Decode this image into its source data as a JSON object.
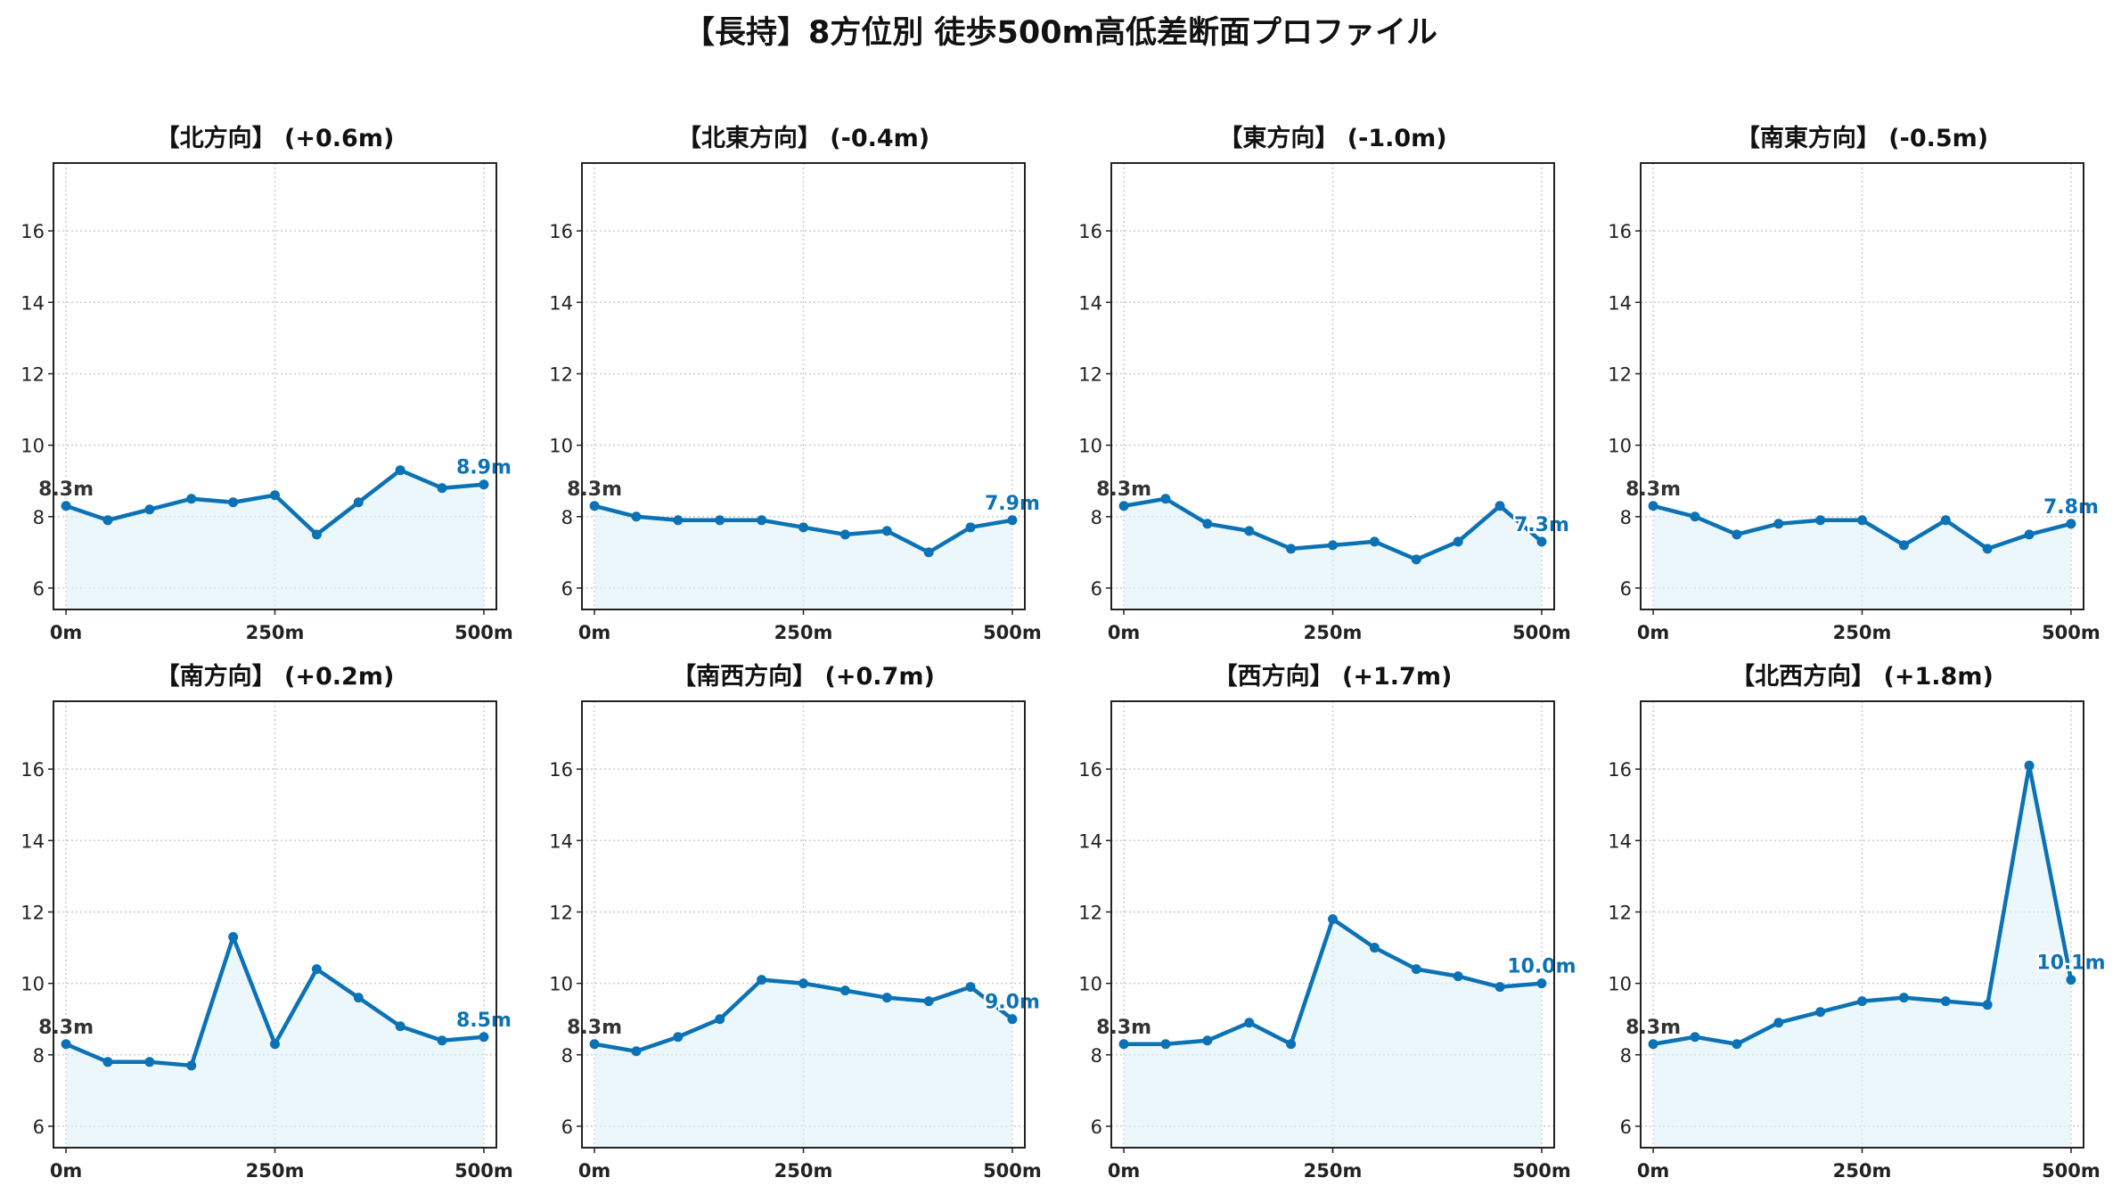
{
  "page": {
    "title": "【長持】8方位別 徒歩500m高低差断面プロファイル"
  },
  "style": {
    "line_color": "#0b72b5",
    "fill_color": "#dff1fa",
    "start_label_color": "#333333",
    "grid_color": "#cccccc"
  },
  "chart_data": [
    {
      "type": "line",
      "title": "【北方向】 (+0.6m)",
      "x": [
        0,
        50,
        100,
        150,
        200,
        250,
        300,
        350,
        400,
        450,
        500
      ],
      "values": [
        8.3,
        7.9,
        8.2,
        8.5,
        8.4,
        8.6,
        7.5,
        8.4,
        9.3,
        8.8,
        8.9
      ],
      "start_label": "8.3m",
      "end_label": "8.9m",
      "xticks": [
        "0m",
        "250m",
        "500m"
      ],
      "yticks": [
        "6",
        "8",
        "10",
        "12",
        "14",
        "16"
      ],
      "xlim": [
        -15,
        515
      ],
      "ylim": [
        5.4,
        17.9
      ],
      "grid": true,
      "area_fill": true
    },
    {
      "type": "line",
      "title": "【北東方向】 (-0.4m)",
      "x": [
        0,
        50,
        100,
        150,
        200,
        250,
        300,
        350,
        400,
        450,
        500
      ],
      "values": [
        8.3,
        8.0,
        7.9,
        7.9,
        7.9,
        7.7,
        7.5,
        7.6,
        7.0,
        7.7,
        7.9
      ],
      "start_label": "8.3m",
      "end_label": "7.9m",
      "xticks": [
        "0m",
        "250m",
        "500m"
      ],
      "yticks": [
        "6",
        "8",
        "10",
        "12",
        "14",
        "16"
      ],
      "xlim": [
        -15,
        515
      ],
      "ylim": [
        5.4,
        17.9
      ],
      "grid": true,
      "area_fill": true
    },
    {
      "type": "line",
      "title": "【東方向】 (-1.0m)",
      "x": [
        0,
        50,
        100,
        150,
        200,
        250,
        300,
        350,
        400,
        450,
        500
      ],
      "values": [
        8.3,
        8.5,
        7.8,
        7.6,
        7.1,
        7.2,
        7.3,
        6.8,
        7.3,
        8.3,
        7.3
      ],
      "start_label": "8.3m",
      "end_label": "7.3m",
      "xticks": [
        "0m",
        "250m",
        "500m"
      ],
      "yticks": [
        "6",
        "8",
        "10",
        "12",
        "14",
        "16"
      ],
      "xlim": [
        -15,
        515
      ],
      "ylim": [
        5.4,
        17.9
      ],
      "grid": true,
      "area_fill": true
    },
    {
      "type": "line",
      "title": "【南東方向】 (-0.5m)",
      "x": [
        0,
        50,
        100,
        150,
        200,
        250,
        300,
        350,
        400,
        450,
        500
      ],
      "values": [
        8.3,
        8.0,
        7.5,
        7.8,
        7.9,
        7.9,
        7.2,
        7.9,
        7.1,
        7.5,
        7.8
      ],
      "start_label": "8.3m",
      "end_label": "7.8m",
      "xticks": [
        "0m",
        "250m",
        "500m"
      ],
      "yticks": [
        "6",
        "8",
        "10",
        "12",
        "14",
        "16"
      ],
      "xlim": [
        -15,
        515
      ],
      "ylim": [
        5.4,
        17.9
      ],
      "grid": true,
      "area_fill": true
    },
    {
      "type": "line",
      "title": "【南方向】 (+0.2m)",
      "x": [
        0,
        50,
        100,
        150,
        200,
        250,
        300,
        350,
        400,
        450,
        500
      ],
      "values": [
        8.3,
        7.8,
        7.8,
        7.7,
        11.3,
        8.3,
        10.4,
        9.6,
        8.8,
        8.4,
        8.5
      ],
      "start_label": "8.3m",
      "end_label": "8.5m",
      "xticks": [
        "0m",
        "250m",
        "500m"
      ],
      "yticks": [
        "6",
        "8",
        "10",
        "12",
        "14",
        "16"
      ],
      "xlim": [
        -15,
        515
      ],
      "ylim": [
        5.4,
        17.9
      ],
      "grid": true,
      "area_fill": true
    },
    {
      "type": "line",
      "title": "【南西方向】 (+0.7m)",
      "x": [
        0,
        50,
        100,
        150,
        200,
        250,
        300,
        350,
        400,
        450,
        500
      ],
      "values": [
        8.3,
        8.1,
        8.5,
        9.0,
        10.1,
        10.0,
        9.8,
        9.6,
        9.5,
        9.9,
        9.0
      ],
      "start_label": "8.3m",
      "end_label": "9.0m",
      "xticks": [
        "0m",
        "250m",
        "500m"
      ],
      "yticks": [
        "6",
        "8",
        "10",
        "12",
        "14",
        "16"
      ],
      "xlim": [
        -15,
        515
      ],
      "ylim": [
        5.4,
        17.9
      ],
      "grid": true,
      "area_fill": true
    },
    {
      "type": "line",
      "title": "【西方向】 (+1.7m)",
      "x": [
        0,
        50,
        100,
        150,
        200,
        250,
        300,
        350,
        400,
        450,
        500
      ],
      "values": [
        8.3,
        8.3,
        8.4,
        8.9,
        8.3,
        11.8,
        11.0,
        10.4,
        10.2,
        9.9,
        10.0
      ],
      "start_label": "8.3m",
      "end_label": "10.0m",
      "xticks": [
        "0m",
        "250m",
        "500m"
      ],
      "yticks": [
        "6",
        "8",
        "10",
        "12",
        "14",
        "16"
      ],
      "xlim": [
        -15,
        515
      ],
      "ylim": [
        5.4,
        17.9
      ],
      "grid": true,
      "area_fill": true
    },
    {
      "type": "line",
      "title": "【北西方向】 (+1.8m)",
      "x": [
        0,
        50,
        100,
        150,
        200,
        250,
        300,
        350,
        400,
        450,
        500
      ],
      "values": [
        8.3,
        8.5,
        8.3,
        8.9,
        9.2,
        9.5,
        9.6,
        9.5,
        9.4,
        16.1,
        10.1
      ],
      "start_label": "8.3m",
      "end_label": "10.1m",
      "xticks": [
        "0m",
        "250m",
        "500m"
      ],
      "yticks": [
        "6",
        "8",
        "10",
        "12",
        "14",
        "16"
      ],
      "xlim": [
        -15,
        515
      ],
      "ylim": [
        5.4,
        17.9
      ],
      "grid": true,
      "area_fill": true
    }
  ]
}
